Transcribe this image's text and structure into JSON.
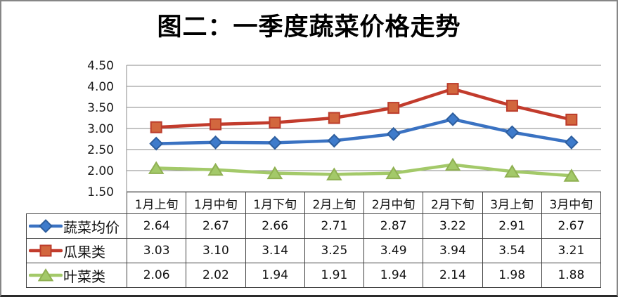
{
  "title": "图二：一季度蔬菜价格走势",
  "chart_data": {
    "type": "line",
    "title": "图二：一季度蔬菜价格走势",
    "categories": [
      "1月上旬",
      "1月中旬",
      "1月下旬",
      "2月上旬",
      "2月中旬",
      "2月下旬",
      "3月上旬",
      "3月中旬"
    ],
    "series": [
      {
        "name": "蔬菜均价",
        "marker": "diamond",
        "line_color": "#3A72C2",
        "marker_fill": "#3E7BCB",
        "marker_stroke": "#2D5E9E",
        "values": [
          2.64,
          2.67,
          2.66,
          2.71,
          2.87,
          3.22,
          2.91,
          2.67
        ]
      },
      {
        "name": "瓜果类",
        "marker": "square",
        "line_color": "#C23B2C",
        "marker_fill": "#D2673E",
        "marker_stroke": "#BC3C2B",
        "values": [
          3.03,
          3.1,
          3.14,
          3.25,
          3.49,
          3.94,
          3.54,
          3.21
        ]
      },
      {
        "name": "叶菜类",
        "marker": "triangle",
        "line_color": "#A3C969",
        "marker_fill": "#A3C969",
        "marker_stroke": "#8FB052",
        "values": [
          2.06,
          2.02,
          1.94,
          1.91,
          1.94,
          2.14,
          1.98,
          1.88
        ]
      }
    ],
    "xlabel": "",
    "ylabel": "",
    "ylim": [
      1.5,
      4.5
    ],
    "ytick_step": 0.5,
    "ytick_labels": [
      "4.50",
      "4.00",
      "3.50",
      "3.00",
      "2.50",
      "2.00",
      "1.50"
    ],
    "grid": true,
    "gridline_color": "#8a8a8a",
    "legend_position": "data-table-left"
  },
  "data_table": {
    "column_headers": [
      "1月上旬",
      "1月中旬",
      "1月下旬",
      "2月上旬",
      "2月中旬",
      "2月下旬",
      "3月上旬",
      "3月中旬"
    ],
    "rows": [
      {
        "label": "蔬菜均价",
        "values": [
          "2.64",
          "2.67",
          "2.66",
          "2.71",
          "2.87",
          "3.22",
          "2.91",
          "2.67"
        ]
      },
      {
        "label": "瓜果类",
        "values": [
          "3.03",
          "3.10",
          "3.14",
          "3.25",
          "3.49",
          "3.94",
          "3.54",
          "3.21"
        ]
      },
      {
        "label": "叶菜类",
        "values": [
          "2.06",
          "2.02",
          "1.94",
          "1.91",
          "1.94",
          "2.14",
          "1.98",
          "1.88"
        ]
      }
    ]
  },
  "colors": {
    "frame_border": "#868686",
    "frame_border_bottom": "#2a2a2a",
    "table_border": "#404040",
    "axis": "#8a8a8a",
    "text": "#111111"
  }
}
